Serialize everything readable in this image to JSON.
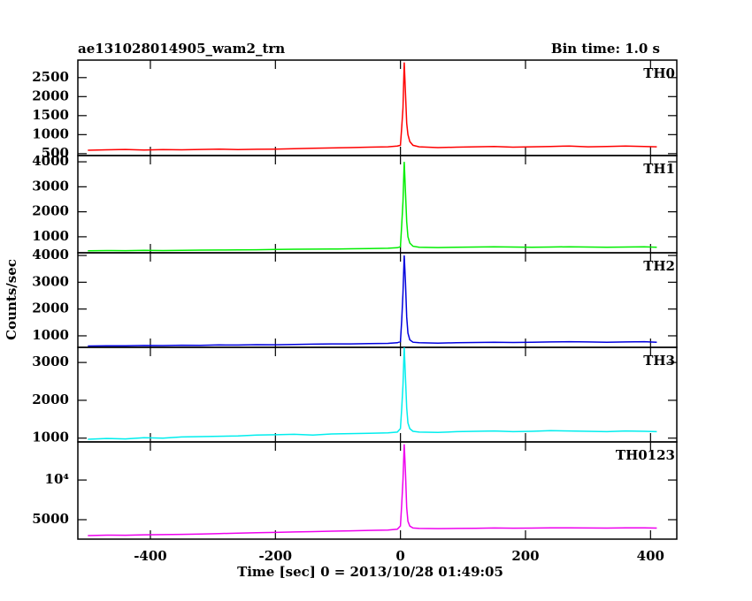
{
  "chart_data": [
    {
      "type": "line",
      "title": "ae131028014905_wam2_trn",
      "subtitle": "Bin time: 1.0 s",
      "label": "TH0",
      "color": "#ff0000",
      "x": [
        -500,
        -470,
        -440,
        -410,
        -380,
        -350,
        -320,
        -290,
        -260,
        -230,
        -200,
        -170,
        -140,
        -110,
        -80,
        -50,
        -20,
        -5,
        0,
        2,
        4,
        6,
        8,
        10,
        12,
        15,
        20,
        30,
        60,
        90,
        120,
        150,
        180,
        210,
        240,
        270,
        300,
        330,
        360,
        390,
        410
      ],
      "values": [
        590,
        600,
        610,
        595,
        605,
        600,
        610,
        620,
        605,
        615,
        620,
        630,
        640,
        650,
        660,
        670,
        680,
        700,
        720,
        1200,
        1700,
        2900,
        2100,
        1300,
        1000,
        820,
        720,
        680,
        660,
        670,
        680,
        690,
        670,
        680,
        690,
        700,
        680,
        690,
        700,
        690,
        680
      ],
      "xlim": [
        -516,
        442
      ],
      "ylim": [
        450,
        2960
      ],
      "yticks": [
        500,
        1000,
        1500,
        2000,
        2500
      ]
    },
    {
      "type": "line",
      "label": "TH1",
      "color": "#00ee00",
      "x": [
        -500,
        -470,
        -440,
        -410,
        -380,
        -350,
        -320,
        -290,
        -260,
        -230,
        -200,
        -170,
        -140,
        -110,
        -80,
        -50,
        -20,
        -5,
        0,
        2,
        4,
        6,
        8,
        10,
        12,
        15,
        20,
        30,
        60,
        90,
        120,
        150,
        180,
        210,
        240,
        270,
        300,
        330,
        360,
        390,
        410
      ],
      "values": [
        440,
        450,
        445,
        455,
        450,
        460,
        465,
        470,
        475,
        480,
        490,
        500,
        505,
        510,
        520,
        530,
        540,
        560,
        600,
        1500,
        2400,
        4000,
        2800,
        1600,
        1000,
        750,
        620,
        580,
        570,
        580,
        590,
        600,
        590,
        580,
        590,
        600,
        590,
        580,
        590,
        600,
        580
      ],
      "xlim": [
        -516,
        442
      ],
      "ylim": [
        360,
        4250
      ],
      "yticks": [
        1000,
        2000,
        3000,
        4000
      ]
    },
    {
      "type": "line",
      "label": "TH2",
      "color": "#0000dd",
      "ylabel": "Counts/sec",
      "x": [
        -500,
        -470,
        -440,
        -410,
        -380,
        -350,
        -320,
        -290,
        -260,
        -230,
        -200,
        -170,
        -140,
        -110,
        -80,
        -50,
        -20,
        -5,
        0,
        2,
        4,
        6,
        8,
        10,
        12,
        15,
        20,
        30,
        60,
        90,
        120,
        150,
        180,
        210,
        240,
        270,
        300,
        330,
        360,
        390,
        410
      ],
      "values": [
        620,
        630,
        625,
        640,
        635,
        650,
        645,
        660,
        655,
        670,
        665,
        680,
        690,
        700,
        700,
        710,
        720,
        740,
        780,
        1600,
        2600,
        4000,
        3000,
        1700,
        1100,
        850,
        760,
        740,
        730,
        740,
        750,
        760,
        750,
        760,
        770,
        780,
        770,
        760,
        770,
        780,
        760
      ],
      "xlim": [
        -516,
        442
      ],
      "ylim": [
        570,
        4100
      ],
      "yticks": [
        1000,
        2000,
        3000,
        4000
      ]
    },
    {
      "type": "line",
      "label": "TH3",
      "color": "#00eeee",
      "x": [
        -500,
        -470,
        -440,
        -410,
        -380,
        -350,
        -320,
        -290,
        -260,
        -230,
        -200,
        -170,
        -140,
        -110,
        -80,
        -50,
        -20,
        -5,
        0,
        2,
        4,
        6,
        8,
        10,
        12,
        15,
        20,
        30,
        60,
        90,
        120,
        150,
        180,
        210,
        240,
        270,
        300,
        330,
        360,
        390,
        410
      ],
      "values": [
        970,
        990,
        980,
        1010,
        1000,
        1030,
        1040,
        1050,
        1060,
        1080,
        1090,
        1100,
        1080,
        1110,
        1120,
        1130,
        1140,
        1160,
        1250,
        1800,
        2400,
        3400,
        2600,
        1800,
        1400,
        1250,
        1180,
        1160,
        1150,
        1170,
        1180,
        1190,
        1170,
        1180,
        1200,
        1190,
        1180,
        1170,
        1190,
        1180,
        1170
      ],
      "xlim": [
        -516,
        442
      ],
      "ylim": [
        900,
        3400
      ],
      "yticks": [
        1000,
        2000,
        3000
      ]
    },
    {
      "type": "line",
      "label": "TH0123",
      "color": "#ee00ee",
      "xlabel": "Time [sec] 0 = 2013/10/28 01:49:05",
      "x": [
        -500,
        -470,
        -440,
        -410,
        -380,
        -350,
        -320,
        -290,
        -260,
        -230,
        -200,
        -170,
        -140,
        -110,
        -80,
        -50,
        -20,
        -5,
        0,
        2,
        4,
        6,
        8,
        10,
        12,
        15,
        20,
        30,
        60,
        90,
        120,
        150,
        180,
        210,
        240,
        270,
        300,
        330,
        360,
        390,
        410
      ],
      "values": [
        3000,
        3050,
        3040,
        3100,
        3120,
        3150,
        3200,
        3250,
        3300,
        3350,
        3400,
        3450,
        3500,
        3550,
        3600,
        3650,
        3700,
        3800,
        4200,
        7000,
        10000,
        14500,
        11000,
        6500,
        4800,
        4200,
        3950,
        3900,
        3880,
        3900,
        3920,
        3950,
        3930,
        3940,
        3960,
        3980,
        3950,
        3940,
        3960,
        3970,
        3940
      ],
      "xlim": [
        -516,
        442
      ],
      "ylim": [
        2550,
        14800
      ],
      "yticks": [
        5000,
        {
          "value": 10000,
          "label": "10⁴"
        }
      ],
      "xticks": [
        -400,
        -200,
        0,
        200,
        400
      ]
    }
  ]
}
